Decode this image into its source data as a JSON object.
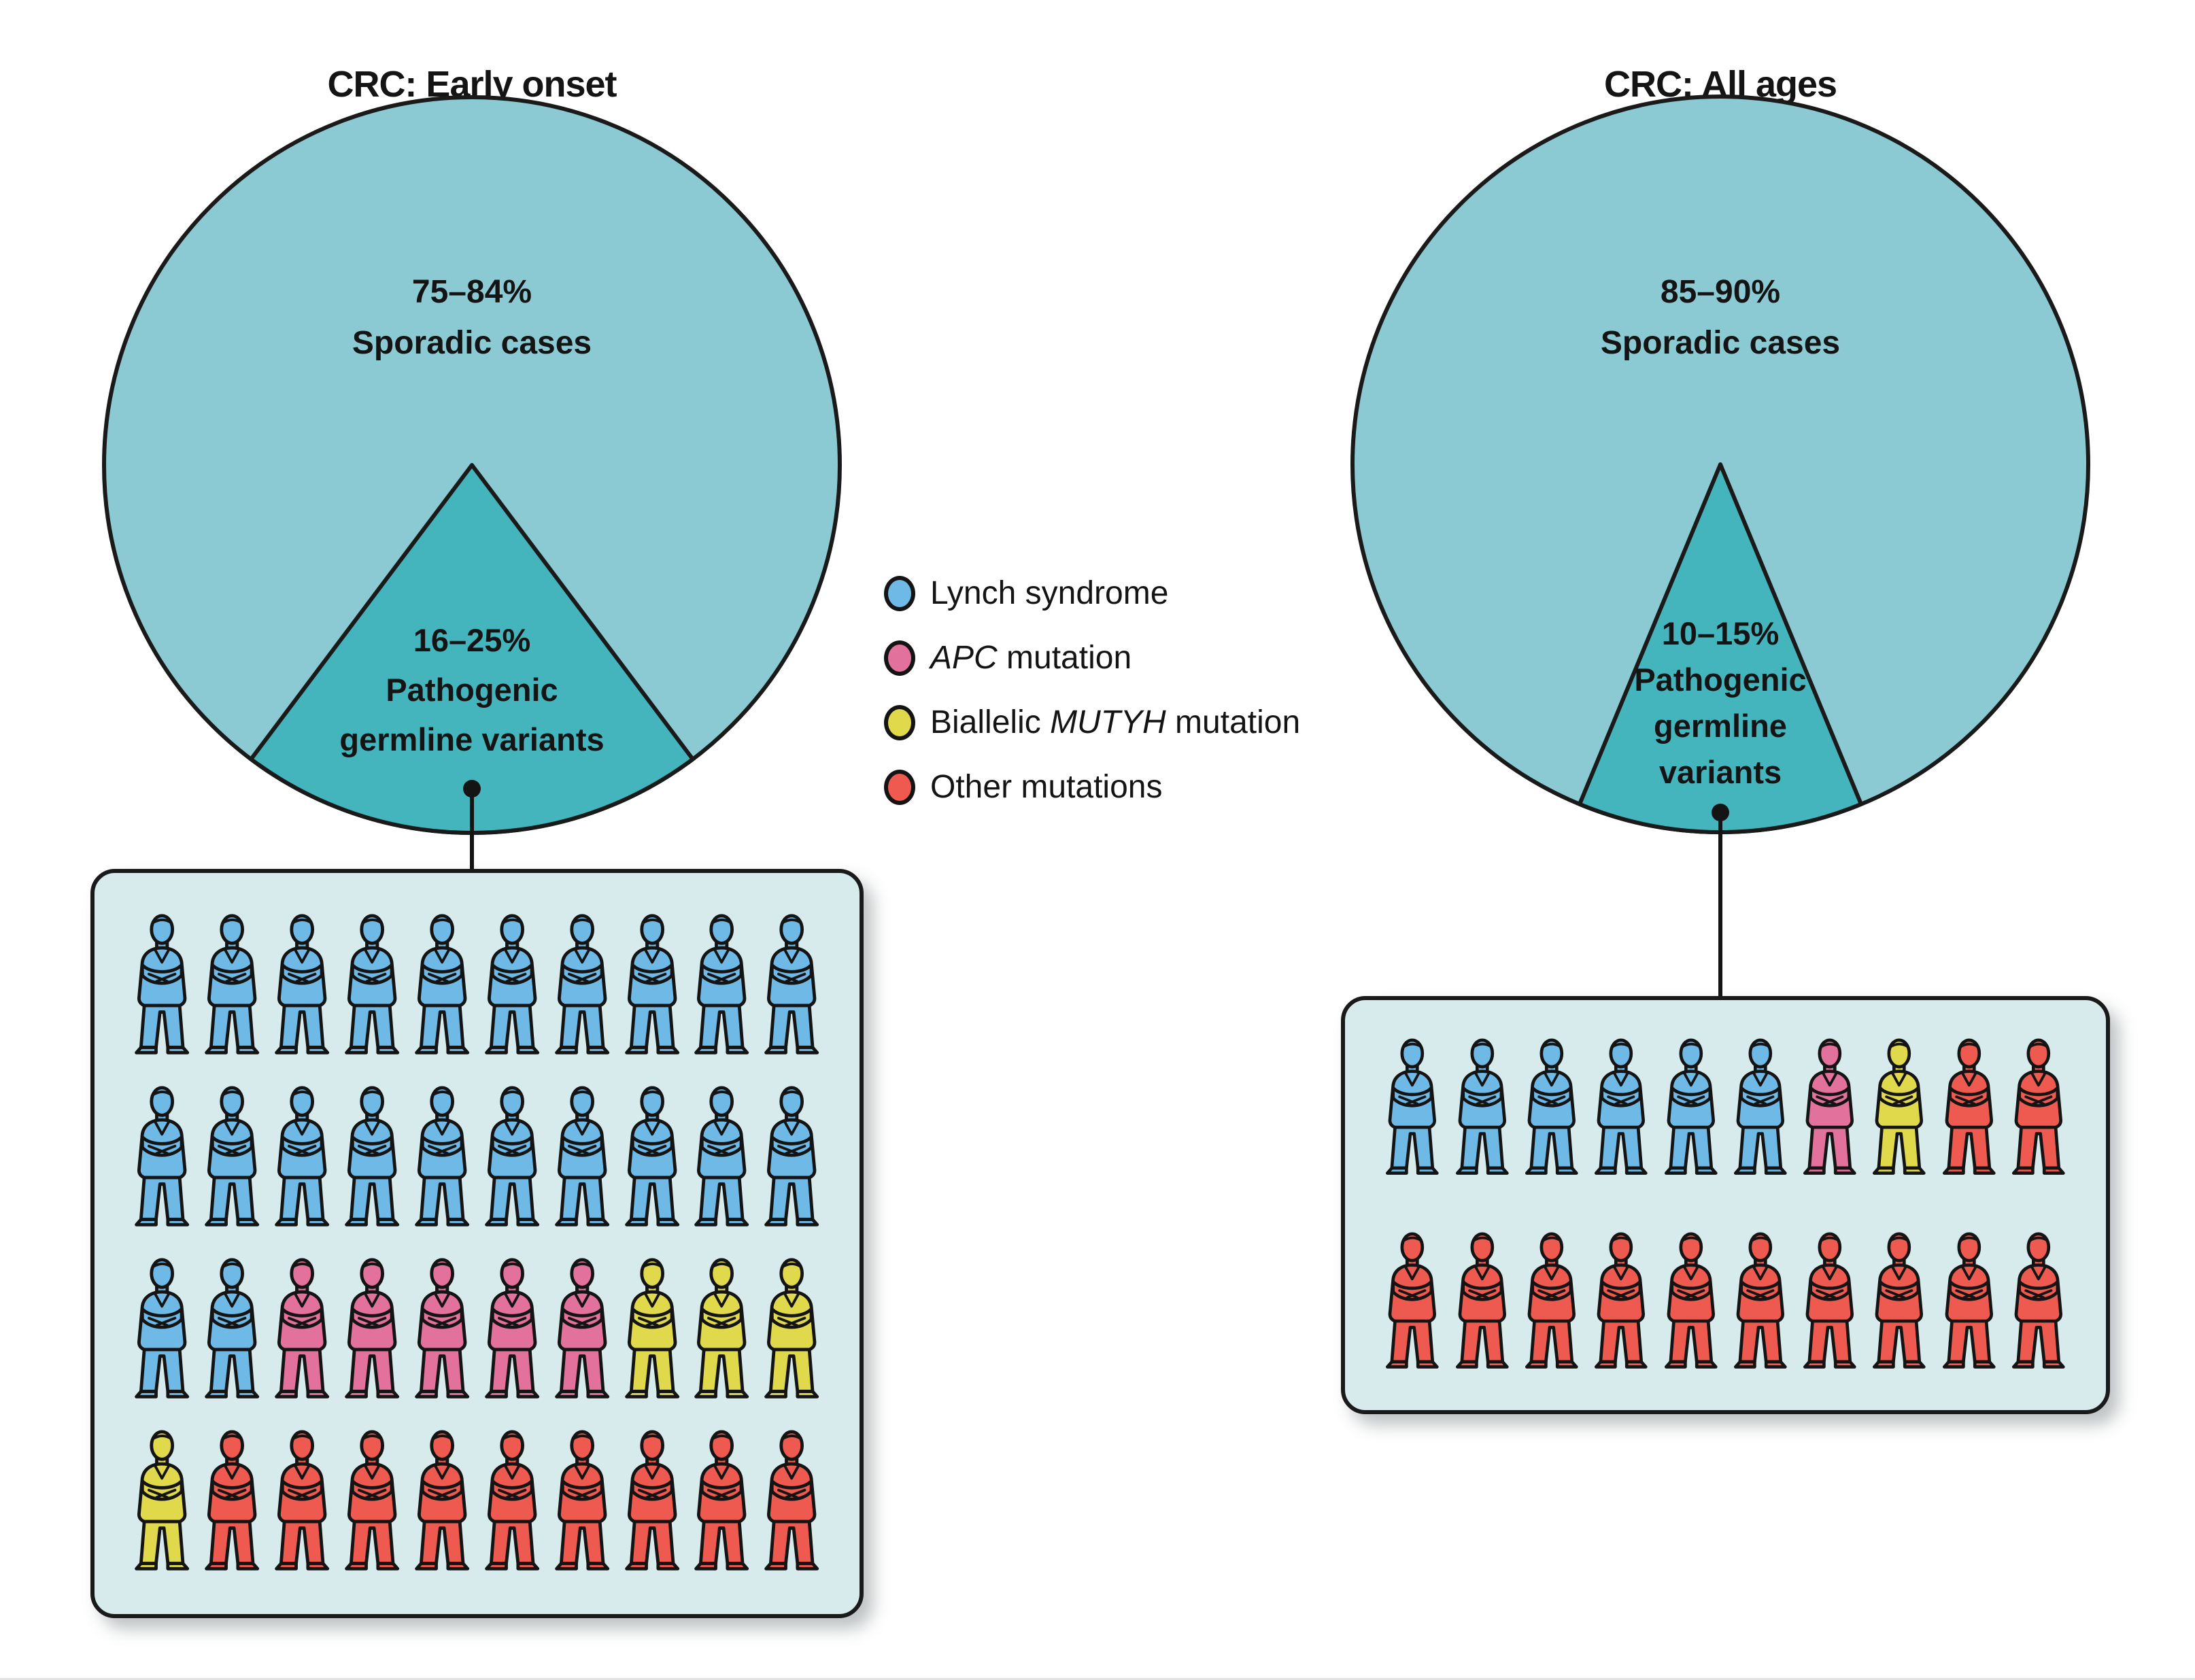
{
  "legend": {
    "items": [
      {
        "key": "lynch",
        "color": "#6FB9E6",
        "segments": [
          {
            "text": "Lynch syndrome",
            "italic": false
          }
        ]
      },
      {
        "key": "apc",
        "color": "#E2719B",
        "segments": [
          {
            "text": "APC",
            "italic": true
          },
          {
            "text": " mutation",
            "italic": false
          }
        ]
      },
      {
        "key": "mutyh",
        "color": "#E0D94B",
        "segments": [
          {
            "text": "Biallelic ",
            "italic": false
          },
          {
            "text": "MUTYH",
            "italic": true
          },
          {
            "text": " mutation",
            "italic": false
          }
        ]
      },
      {
        "key": "other",
        "color": "#EE5A50",
        "segments": [
          {
            "text": "Other mutations",
            "italic": false
          }
        ]
      }
    ]
  },
  "chart_data": [
    {
      "type": "pie",
      "title": "CRC: Early onset",
      "slices": [
        {
          "label": "Sporadic cases",
          "value_range": "75–84%",
          "pct_mid": 79.5,
          "color": "#8BCAD2"
        },
        {
          "label": "Pathogenic germline variants",
          "value_range": "16–25%",
          "pct_mid": 20.5,
          "color": "#45B5BD"
        }
      ],
      "major_label_lines": [
        "75–84%",
        "Sporadic cases"
      ],
      "wedge_label_lines": [
        "16–25%",
        "Pathogenic",
        "germline variants"
      ],
      "legend_position": "center-between-pies",
      "pictogram": {
        "unit": "person",
        "columns": 10,
        "units_total": 40,
        "counts": {
          "lynch": 22,
          "apc": 5,
          "mutyh": 4,
          "other": 9
        },
        "rows": [
          [
            "lynch",
            "lynch",
            "lynch",
            "lynch",
            "lynch",
            "lynch",
            "lynch",
            "lynch",
            "lynch",
            "lynch"
          ],
          [
            "lynch",
            "lynch",
            "lynch",
            "lynch",
            "lynch",
            "lynch",
            "lynch",
            "lynch",
            "lynch",
            "lynch"
          ],
          [
            "lynch",
            "lynch",
            "apc",
            "apc",
            "apc",
            "apc",
            "apc",
            "mutyh",
            "mutyh",
            "mutyh"
          ],
          [
            "mutyh",
            "other",
            "other",
            "other",
            "other",
            "other",
            "other",
            "other",
            "other",
            "other"
          ]
        ]
      }
    },
    {
      "type": "pie",
      "title": "CRC: All ages",
      "slices": [
        {
          "label": "Sporadic cases",
          "value_range": "85–90%",
          "pct_mid": 87.5,
          "color": "#8BCAD2"
        },
        {
          "label": "Pathogenic germline variants",
          "value_range": "10–15%",
          "pct_mid": 12.5,
          "color": "#45B5BD"
        }
      ],
      "major_label_lines": [
        "85–90%",
        "Sporadic cases"
      ],
      "wedge_label_lines": [
        "10–15%",
        "Pathogenic",
        "germline",
        "variants"
      ],
      "legend_position": "center-between-pies",
      "pictogram": {
        "unit": "person",
        "columns": 10,
        "units_total": 20,
        "counts": {
          "lynch": 6,
          "apc": 1,
          "mutyh": 1,
          "other": 12
        },
        "rows": [
          [
            "lynch",
            "lynch",
            "lynch",
            "lynch",
            "lynch",
            "lynch",
            "apc",
            "mutyh",
            "other",
            "other"
          ],
          [
            "other",
            "other",
            "other",
            "other",
            "other",
            "other",
            "other",
            "other",
            "other",
            "other"
          ]
        ]
      }
    }
  ]
}
